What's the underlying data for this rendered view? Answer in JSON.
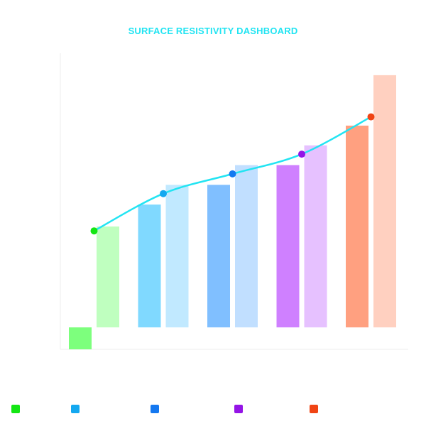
{
  "title": "SURFACE RESISTIVITY DASHBOARD",
  "chart_data": {
    "type": "bar",
    "title": "SURFACE RESISTIVITY DASHBOARD",
    "xlabel": "",
    "ylabel": "",
    "ylim": [
      -10,
      125
    ],
    "grid": false,
    "categories": [
      "",
      "",
      "",
      "",
      ""
    ],
    "series": [
      {
        "values": [
          -10,
          56,
          65,
          74,
          92
        ],
        "colors": [
          "#7dff7d",
          "#80d9ff",
          "#80bfff",
          "#cf80ff",
          "#ffa080"
        ]
      },
      {
        "values": [
          46,
          65,
          74,
          83,
          115
        ],
        "colors": [
          "#bfffbf",
          "#c1e9ff",
          "#c1dfff",
          "#e6c1ff",
          "#ffd0c0"
        ]
      }
    ],
    "line": {
      "values": [
        44,
        61,
        70,
        79,
        96
      ],
      "color": "#22e4f2",
      "point_colors": [
        "#14e614",
        "#14a8f0",
        "#1478f0",
        "#9414e6",
        "#f04414"
      ]
    },
    "legend": {
      "placement": "bottom",
      "colors": [
        "#14e614",
        "#14a8f0",
        "#1478f0",
        "#9414e6",
        "#f04414"
      ]
    }
  }
}
